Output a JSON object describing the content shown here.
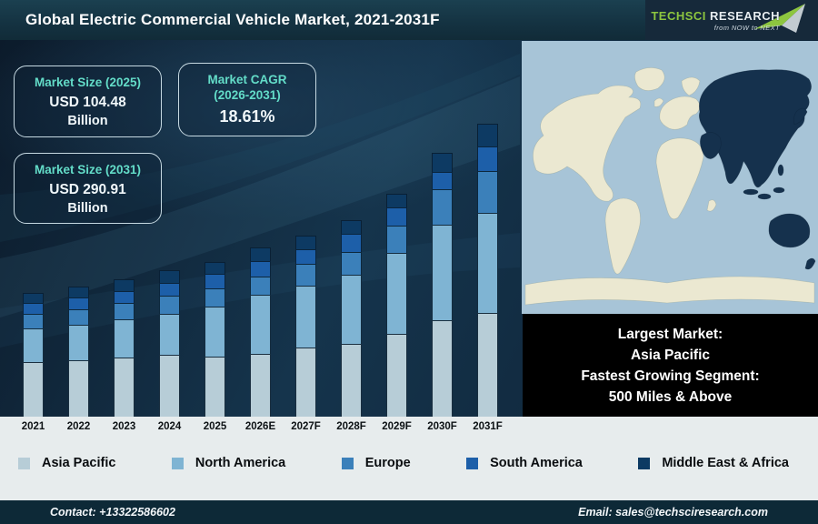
{
  "header": {
    "title": "Global Electric Commercial Vehicle Market, 2021-2031F",
    "logo": {
      "brand_primary": "TechSci",
      "brand_secondary": "Research",
      "tagline": "from NOW to NEXT"
    }
  },
  "info_boxes": [
    {
      "label": "Market Size (2025)",
      "value": "USD 104.48",
      "unit": "Billion"
    },
    {
      "label": "Market CAGR",
      "sublabel": "(2026-2031)",
      "value": "18.61%"
    },
    {
      "label": "Market Size (2031)",
      "value": "USD 290.91",
      "unit": "Billion"
    }
  ],
  "highlight_box": {
    "line1": "Largest Market:",
    "line2": "Asia Pacific",
    "line3": "Fastest Growing Segment:",
    "line4": "500 Miles & Above"
  },
  "map": {
    "highlighted_region": "Asia Pacific",
    "ocean_color": "#a7c4d7",
    "land_color": "#ebe8d1",
    "highlight_color": "#15314d"
  },
  "footer": {
    "contact": "Contact: +13322586602",
    "email": "Email: sales@techsciresearch.com"
  },
  "chart_data": {
    "type": "bar",
    "stacked": true,
    "title": "Global Electric Commercial Vehicle Market, 2021-2031F",
    "categories": [
      "2021",
      "2022",
      "2023",
      "2024",
      "2025",
      "2026E",
      "2027F",
      "2028F",
      "2029F",
      "2030F",
      "2031F"
    ],
    "series": [
      {
        "name": "Asia Pacific",
        "color": "#b7cdd7",
        "values": [
          60,
          62,
          65,
          68,
          66,
          69,
          76,
          80,
          91,
          106,
          114
        ]
      },
      {
        "name": "North America",
        "color": "#7fb4d3",
        "values": [
          37,
          39,
          42,
          45,
          55,
          65,
          68,
          76,
          89,
          105,
          110
        ]
      },
      {
        "name": "Europe",
        "color": "#3b80ba",
        "values": [
          16,
          17,
          18,
          20,
          20,
          20,
          24,
          25,
          30,
          39,
          46
        ]
      },
      {
        "name": "South America",
        "color": "#1d5fa9",
        "values": [
          12,
          13,
          13,
          14,
          16,
          17,
          16,
          20,
          20,
          19,
          27
        ]
      },
      {
        "name": "Middle East & Africa",
        "color": "#0d3a63",
        "values": [
          11,
          12,
          13,
          14,
          13,
          15,
          15,
          15,
          15,
          21,
          25
        ]
      }
    ],
    "values_unit": "relative bar-segment heights (px as drawn); chart shows no numeric axis",
    "annotations": {
      "market_size_2025_usd_billion": 104.48,
      "market_size_2031_usd_billion": 290.91,
      "cagr_2026_2031_percent": 18.61
    },
    "xlabel": "",
    "ylabel": "",
    "grid": false,
    "legend_position": "bottom"
  }
}
